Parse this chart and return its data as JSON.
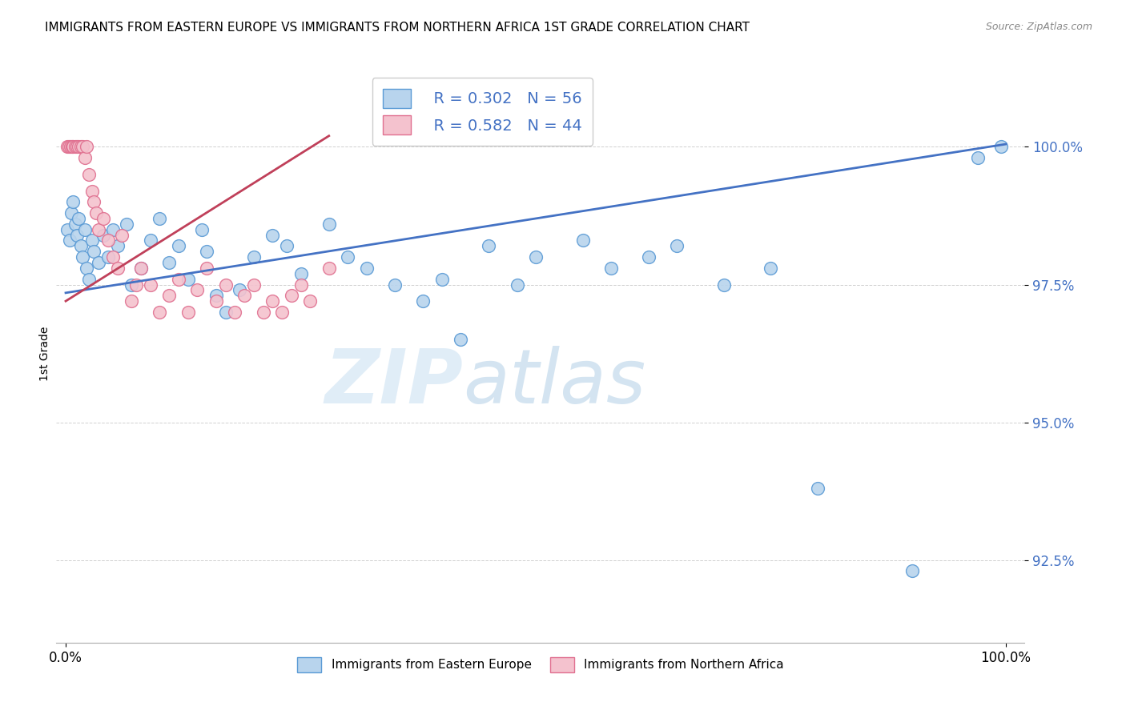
{
  "title": "IMMIGRANTS FROM EASTERN EUROPE VS IMMIGRANTS FROM NORTHERN AFRICA 1ST GRADE CORRELATION CHART",
  "source": "Source: ZipAtlas.com",
  "ylabel": "1st Grade",
  "legend_blue_label": "Immigrants from Eastern Europe",
  "legend_pink_label": "Immigrants from Northern Africa",
  "legend_blue_R": "R = 0.302",
  "legend_blue_N": "N = 56",
  "legend_pink_R": "R = 0.582",
  "legend_pink_N": "N = 44",
  "watermark_zip": "ZIP",
  "watermark_atlas": "atlas",
  "ylim_min": 91.0,
  "ylim_max": 101.5,
  "xlim_min": -1.0,
  "xlim_max": 102.0,
  "yticks": [
    92.5,
    95.0,
    97.5,
    100.0
  ],
  "ytick_labels": [
    "92.5%",
    "95.0%",
    "97.5%",
    "100.0%"
  ],
  "blue_color": "#b8d4ed",
  "blue_edge_color": "#5b9bd5",
  "blue_line_color": "#4472c4",
  "pink_color": "#f4c2ce",
  "pink_edge_color": "#e07090",
  "pink_line_color": "#c0405a",
  "blue_dots_x": [
    0.2,
    0.4,
    0.6,
    0.8,
    1.0,
    1.2,
    1.4,
    1.6,
    1.8,
    2.0,
    2.2,
    2.5,
    2.8,
    3.0,
    3.5,
    4.0,
    4.5,
    5.0,
    5.5,
    6.5,
    7.0,
    8.0,
    9.0,
    10.0,
    11.0,
    12.0,
    13.0,
    14.5,
    15.0,
    16.0,
    17.0,
    18.5,
    20.0,
    22.0,
    23.5,
    25.0,
    28.0,
    30.0,
    32.0,
    35.0,
    38.0,
    40.0,
    42.0,
    45.0,
    48.0,
    50.0,
    55.0,
    58.0,
    62.0,
    65.0,
    70.0,
    75.0,
    80.0,
    90.0,
    97.0,
    99.5
  ],
  "blue_dots_y": [
    98.5,
    98.3,
    98.8,
    99.0,
    98.6,
    98.4,
    98.7,
    98.2,
    98.0,
    98.5,
    97.8,
    97.6,
    98.3,
    98.1,
    97.9,
    98.4,
    98.0,
    98.5,
    98.2,
    98.6,
    97.5,
    97.8,
    98.3,
    98.7,
    97.9,
    98.2,
    97.6,
    98.5,
    98.1,
    97.3,
    97.0,
    97.4,
    98.0,
    98.4,
    98.2,
    97.7,
    98.6,
    98.0,
    97.8,
    97.5,
    97.2,
    97.6,
    96.5,
    98.2,
    97.5,
    98.0,
    98.3,
    97.8,
    98.0,
    98.2,
    97.5,
    97.8,
    93.8,
    92.3,
    99.8,
    100.0
  ],
  "pink_dots_x": [
    0.2,
    0.3,
    0.5,
    0.7,
    0.8,
    1.0,
    1.2,
    1.4,
    1.6,
    1.8,
    2.0,
    2.2,
    2.5,
    2.8,
    3.0,
    3.2,
    3.5,
    4.0,
    4.5,
    5.0,
    5.5,
    6.0,
    7.0,
    7.5,
    8.0,
    9.0,
    10.0,
    11.0,
    12.0,
    13.0,
    14.0,
    15.0,
    16.0,
    17.0,
    18.0,
    19.0,
    20.0,
    21.0,
    22.0,
    23.0,
    24.0,
    25.0,
    26.0,
    28.0
  ],
  "pink_dots_y": [
    100.0,
    100.0,
    100.0,
    100.0,
    100.0,
    100.0,
    100.0,
    100.0,
    100.0,
    100.0,
    99.8,
    100.0,
    99.5,
    99.2,
    99.0,
    98.8,
    98.5,
    98.7,
    98.3,
    98.0,
    97.8,
    98.4,
    97.2,
    97.5,
    97.8,
    97.5,
    97.0,
    97.3,
    97.6,
    97.0,
    97.4,
    97.8,
    97.2,
    97.5,
    97.0,
    97.3,
    97.5,
    97.0,
    97.2,
    97.0,
    97.3,
    97.5,
    97.2,
    97.8
  ],
  "blue_line_x": [
    0.0,
    100.0
  ],
  "blue_line_y": [
    97.35,
    100.05
  ],
  "pink_line_x": [
    0.0,
    28.0
  ],
  "pink_line_y": [
    97.2,
    100.2
  ],
  "xtick_positions": [
    0,
    100
  ],
  "xtick_labels": [
    "0.0%",
    "100.0%"
  ]
}
